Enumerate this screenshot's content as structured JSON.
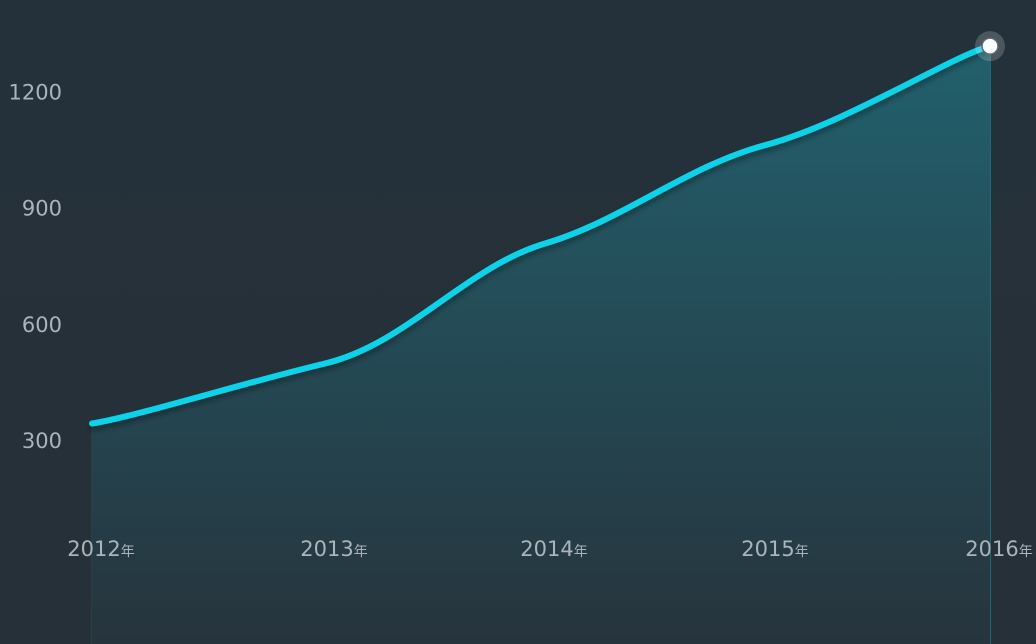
{
  "chart_data": {
    "type": "area",
    "categories": [
      "2012",
      "2013",
      "2014",
      "2015",
      "2016"
    ],
    "x_suffix": "年",
    "values": [
      345,
      500,
      810,
      1065,
      1320
    ],
    "yticks": [
      300,
      600,
      900,
      1200
    ],
    "ylim": [
      0,
      1370
    ],
    "title": "",
    "xlabel": "",
    "ylabel": "",
    "grid": "vertical",
    "highlight_index": 4,
    "colors": {
      "line": "#0fd3ea",
      "area_top": "#22606d",
      "area_bottom": "#26343d",
      "gridline": "#3a474f",
      "marker_fill": "#ffffff",
      "text": "#aab4bb"
    }
  }
}
